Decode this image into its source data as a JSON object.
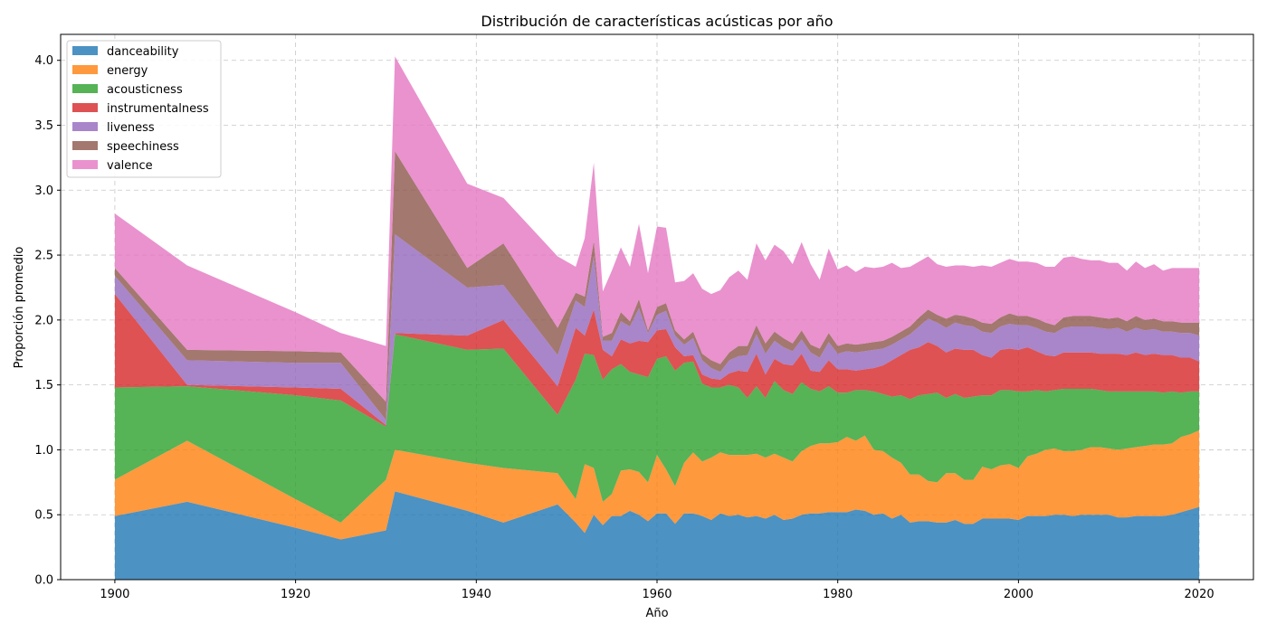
{
  "chart_data": {
    "type": "area",
    "stacked": true,
    "title": "Distribución de características acústicas por año",
    "xlabel": "Año",
    "ylabel": "Proporción promedio",
    "xlim": [
      1894,
      2026
    ],
    "ylim": [
      0,
      4.2
    ],
    "xticks": [
      1900,
      1920,
      1940,
      1960,
      1980,
      2000,
      2020
    ],
    "yticks": [
      0.0,
      0.5,
      1.0,
      1.5,
      2.0,
      2.5,
      3.0,
      3.5,
      4.0
    ],
    "xtick_labels": [
      "1900",
      "1920",
      "1940",
      "1960",
      "1980",
      "2000",
      "2020"
    ],
    "ytick_labels": [
      "0.0",
      "0.5",
      "1.0",
      "1.5",
      "2.0",
      "2.5",
      "3.0",
      "3.5",
      "4.0"
    ],
    "grid": true,
    "legend_position": "upper-left",
    "x": [
      1900,
      1908,
      1920,
      1925,
      1930,
      1931,
      1939,
      1943,
      1949,
      1951,
      1952,
      1953,
      1954,
      1955,
      1956,
      1957,
      1958,
      1959,
      1960,
      1961,
      1962,
      1963,
      1964,
      1965,
      1966,
      1967,
      1968,
      1969,
      1970,
      1971,
      1972,
      1973,
      1974,
      1975,
      1976,
      1977,
      1978,
      1979,
      1980,
      1981,
      1982,
      1983,
      1984,
      1985,
      1986,
      1987,
      1988,
      1989,
      1990,
      1991,
      1992,
      1993,
      1994,
      1995,
      1996,
      1997,
      1998,
      1999,
      2000,
      2001,
      2002,
      2003,
      2004,
      2005,
      2006,
      2007,
      2008,
      2009,
      2010,
      2011,
      2012,
      2013,
      2014,
      2015,
      2016,
      2017,
      2018,
      2019,
      2020
    ],
    "series": [
      {
        "name": "danceability",
        "color": "#1f77b4",
        "values": [
          0.49,
          0.6,
          0.4,
          0.31,
          0.38,
          0.68,
          0.53,
          0.44,
          0.58,
          0.44,
          0.36,
          0.5,
          0.42,
          0.49,
          0.49,
          0.53,
          0.5,
          0.45,
          0.51,
          0.51,
          0.43,
          0.51,
          0.51,
          0.49,
          0.46,
          0.51,
          0.49,
          0.5,
          0.48,
          0.49,
          0.47,
          0.5,
          0.46,
          0.47,
          0.5,
          0.51,
          0.51,
          0.52,
          0.52,
          0.52,
          0.54,
          0.53,
          0.5,
          0.51,
          0.47,
          0.5,
          0.44,
          0.45,
          0.45,
          0.44,
          0.44,
          0.46,
          0.43,
          0.43,
          0.47,
          0.47,
          0.47,
          0.47,
          0.46,
          0.49,
          0.49,
          0.49,
          0.5,
          0.5,
          0.49,
          0.5,
          0.5,
          0.5,
          0.5,
          0.48,
          0.48,
          0.49,
          0.49,
          0.49,
          0.49,
          0.5,
          0.52,
          0.54,
          0.56
        ]
      },
      {
        "name": "energy",
        "color": "#ff7f0e",
        "values": [
          0.28,
          0.47,
          0.22,
          0.13,
          0.39,
          0.32,
          0.37,
          0.42,
          0.24,
          0.18,
          0.53,
          0.36,
          0.18,
          0.17,
          0.35,
          0.32,
          0.33,
          0.3,
          0.45,
          0.34,
          0.29,
          0.39,
          0.47,
          0.42,
          0.48,
          0.47,
          0.47,
          0.46,
          0.48,
          0.48,
          0.47,
          0.47,
          0.48,
          0.44,
          0.49,
          0.52,
          0.54,
          0.53,
          0.54,
          0.58,
          0.53,
          0.58,
          0.5,
          0.48,
          0.47,
          0.4,
          0.37,
          0.36,
          0.31,
          0.31,
          0.38,
          0.36,
          0.34,
          0.34,
          0.4,
          0.38,
          0.41,
          0.42,
          0.4,
          0.46,
          0.48,
          0.51,
          0.51,
          0.49,
          0.5,
          0.5,
          0.52,
          0.52,
          0.51,
          0.52,
          0.53,
          0.53,
          0.54,
          0.55,
          0.55,
          0.55,
          0.58,
          0.58,
          0.59
        ]
      },
      {
        "name": "acousticness",
        "color": "#2ca02c",
        "values": [
          0.71,
          0.42,
          0.8,
          0.94,
          0.41,
          0.89,
          0.87,
          0.92,
          0.45,
          0.92,
          0.85,
          0.87,
          0.94,
          0.96,
          0.82,
          0.75,
          0.75,
          0.81,
          0.74,
          0.87,
          0.89,
          0.77,
          0.7,
          0.6,
          0.54,
          0.5,
          0.54,
          0.52,
          0.44,
          0.52,
          0.46,
          0.56,
          0.52,
          0.52,
          0.53,
          0.44,
          0.4,
          0.44,
          0.38,
          0.34,
          0.39,
          0.35,
          0.45,
          0.44,
          0.47,
          0.52,
          0.58,
          0.61,
          0.67,
          0.69,
          0.58,
          0.61,
          0.63,
          0.64,
          0.55,
          0.57,
          0.58,
          0.57,
          0.59,
          0.5,
          0.49,
          0.45,
          0.45,
          0.48,
          0.48,
          0.47,
          0.45,
          0.44,
          0.44,
          0.45,
          0.44,
          0.43,
          0.42,
          0.41,
          0.4,
          0.4,
          0.34,
          0.33,
          0.3
        ]
      },
      {
        "name": "instrumentalness",
        "color": "#d62728",
        "values": [
          0.72,
          0.01,
          0.06,
          0.09,
          0.01,
          0.01,
          0.11,
          0.22,
          0.22,
          0.4,
          0.14,
          0.35,
          0.23,
          0.1,
          0.19,
          0.22,
          0.26,
          0.27,
          0.22,
          0.21,
          0.18,
          0.05,
          0.05,
          0.07,
          0.07,
          0.06,
          0.09,
          0.13,
          0.2,
          0.25,
          0.18,
          0.17,
          0.2,
          0.22,
          0.22,
          0.14,
          0.15,
          0.2,
          0.18,
          0.18,
          0.15,
          0.16,
          0.18,
          0.22,
          0.28,
          0.31,
          0.38,
          0.37,
          0.4,
          0.36,
          0.35,
          0.35,
          0.37,
          0.36,
          0.31,
          0.29,
          0.31,
          0.32,
          0.32,
          0.34,
          0.3,
          0.28,
          0.26,
          0.28,
          0.28,
          0.28,
          0.28,
          0.28,
          0.29,
          0.29,
          0.28,
          0.3,
          0.28,
          0.29,
          0.29,
          0.28,
          0.27,
          0.26,
          0.23
        ]
      },
      {
        "name": "liveness",
        "color": "#9467bd",
        "values": [
          0.14,
          0.19,
          0.19,
          0.2,
          0.04,
          0.76,
          0.37,
          0.27,
          0.24,
          0.21,
          0.22,
          0.41,
          0.07,
          0.12,
          0.14,
          0.13,
          0.25,
          0.07,
          0.12,
          0.14,
          0.09,
          0.09,
          0.13,
          0.11,
          0.08,
          0.06,
          0.1,
          0.11,
          0.13,
          0.15,
          0.16,
          0.14,
          0.13,
          0.11,
          0.11,
          0.14,
          0.11,
          0.14,
          0.12,
          0.14,
          0.14,
          0.14,
          0.14,
          0.13,
          0.12,
          0.12,
          0.12,
          0.16,
          0.18,
          0.18,
          0.19,
          0.2,
          0.19,
          0.18,
          0.18,
          0.19,
          0.18,
          0.19,
          0.19,
          0.17,
          0.18,
          0.18,
          0.18,
          0.19,
          0.2,
          0.2,
          0.2,
          0.2,
          0.19,
          0.2,
          0.18,
          0.19,
          0.19,
          0.19,
          0.18,
          0.18,
          0.19,
          0.19,
          0.2
        ]
      },
      {
        "name": "speechiness",
        "color": "#8c564b",
        "values": [
          0.06,
          0.08,
          0.09,
          0.08,
          0.14,
          0.64,
          0.15,
          0.32,
          0.21,
          0.06,
          0.08,
          0.12,
          0.03,
          0.06,
          0.07,
          0.04,
          0.07,
          0.02,
          0.06,
          0.06,
          0.04,
          0.04,
          0.05,
          0.05,
          0.06,
          0.06,
          0.06,
          0.08,
          0.07,
          0.07,
          0.08,
          0.07,
          0.07,
          0.06,
          0.07,
          0.06,
          0.07,
          0.07,
          0.06,
          0.06,
          0.06,
          0.06,
          0.06,
          0.06,
          0.06,
          0.06,
          0.06,
          0.07,
          0.07,
          0.06,
          0.07,
          0.06,
          0.07,
          0.06,
          0.07,
          0.07,
          0.07,
          0.08,
          0.07,
          0.07,
          0.07,
          0.07,
          0.06,
          0.08,
          0.08,
          0.08,
          0.08,
          0.08,
          0.08,
          0.08,
          0.08,
          0.09,
          0.08,
          0.08,
          0.08,
          0.08,
          0.08,
          0.08,
          0.1
        ]
      },
      {
        "name": "valence",
        "color": "#e377c2",
        "values": [
          0.42,
          0.65,
          0.3,
          0.15,
          0.43,
          0.73,
          0.65,
          0.35,
          0.55,
          0.2,
          0.45,
          0.6,
          0.35,
          0.48,
          0.5,
          0.42,
          0.58,
          0.44,
          0.62,
          0.58,
          0.37,
          0.45,
          0.45,
          0.5,
          0.51,
          0.57,
          0.58,
          0.58,
          0.51,
          0.63,
          0.64,
          0.67,
          0.67,
          0.61,
          0.68,
          0.62,
          0.53,
          0.65,
          0.59,
          0.6,
          0.56,
          0.59,
          0.57,
          0.57,
          0.57,
          0.49,
          0.46,
          0.43,
          0.41,
          0.39,
          0.4,
          0.38,
          0.39,
          0.4,
          0.44,
          0.44,
          0.42,
          0.42,
          0.42,
          0.42,
          0.43,
          0.43,
          0.45,
          0.46,
          0.46,
          0.44,
          0.43,
          0.44,
          0.43,
          0.42,
          0.39,
          0.42,
          0.4,
          0.42,
          0.39,
          0.41,
          0.42,
          0.42,
          0.42
        ]
      }
    ]
  }
}
